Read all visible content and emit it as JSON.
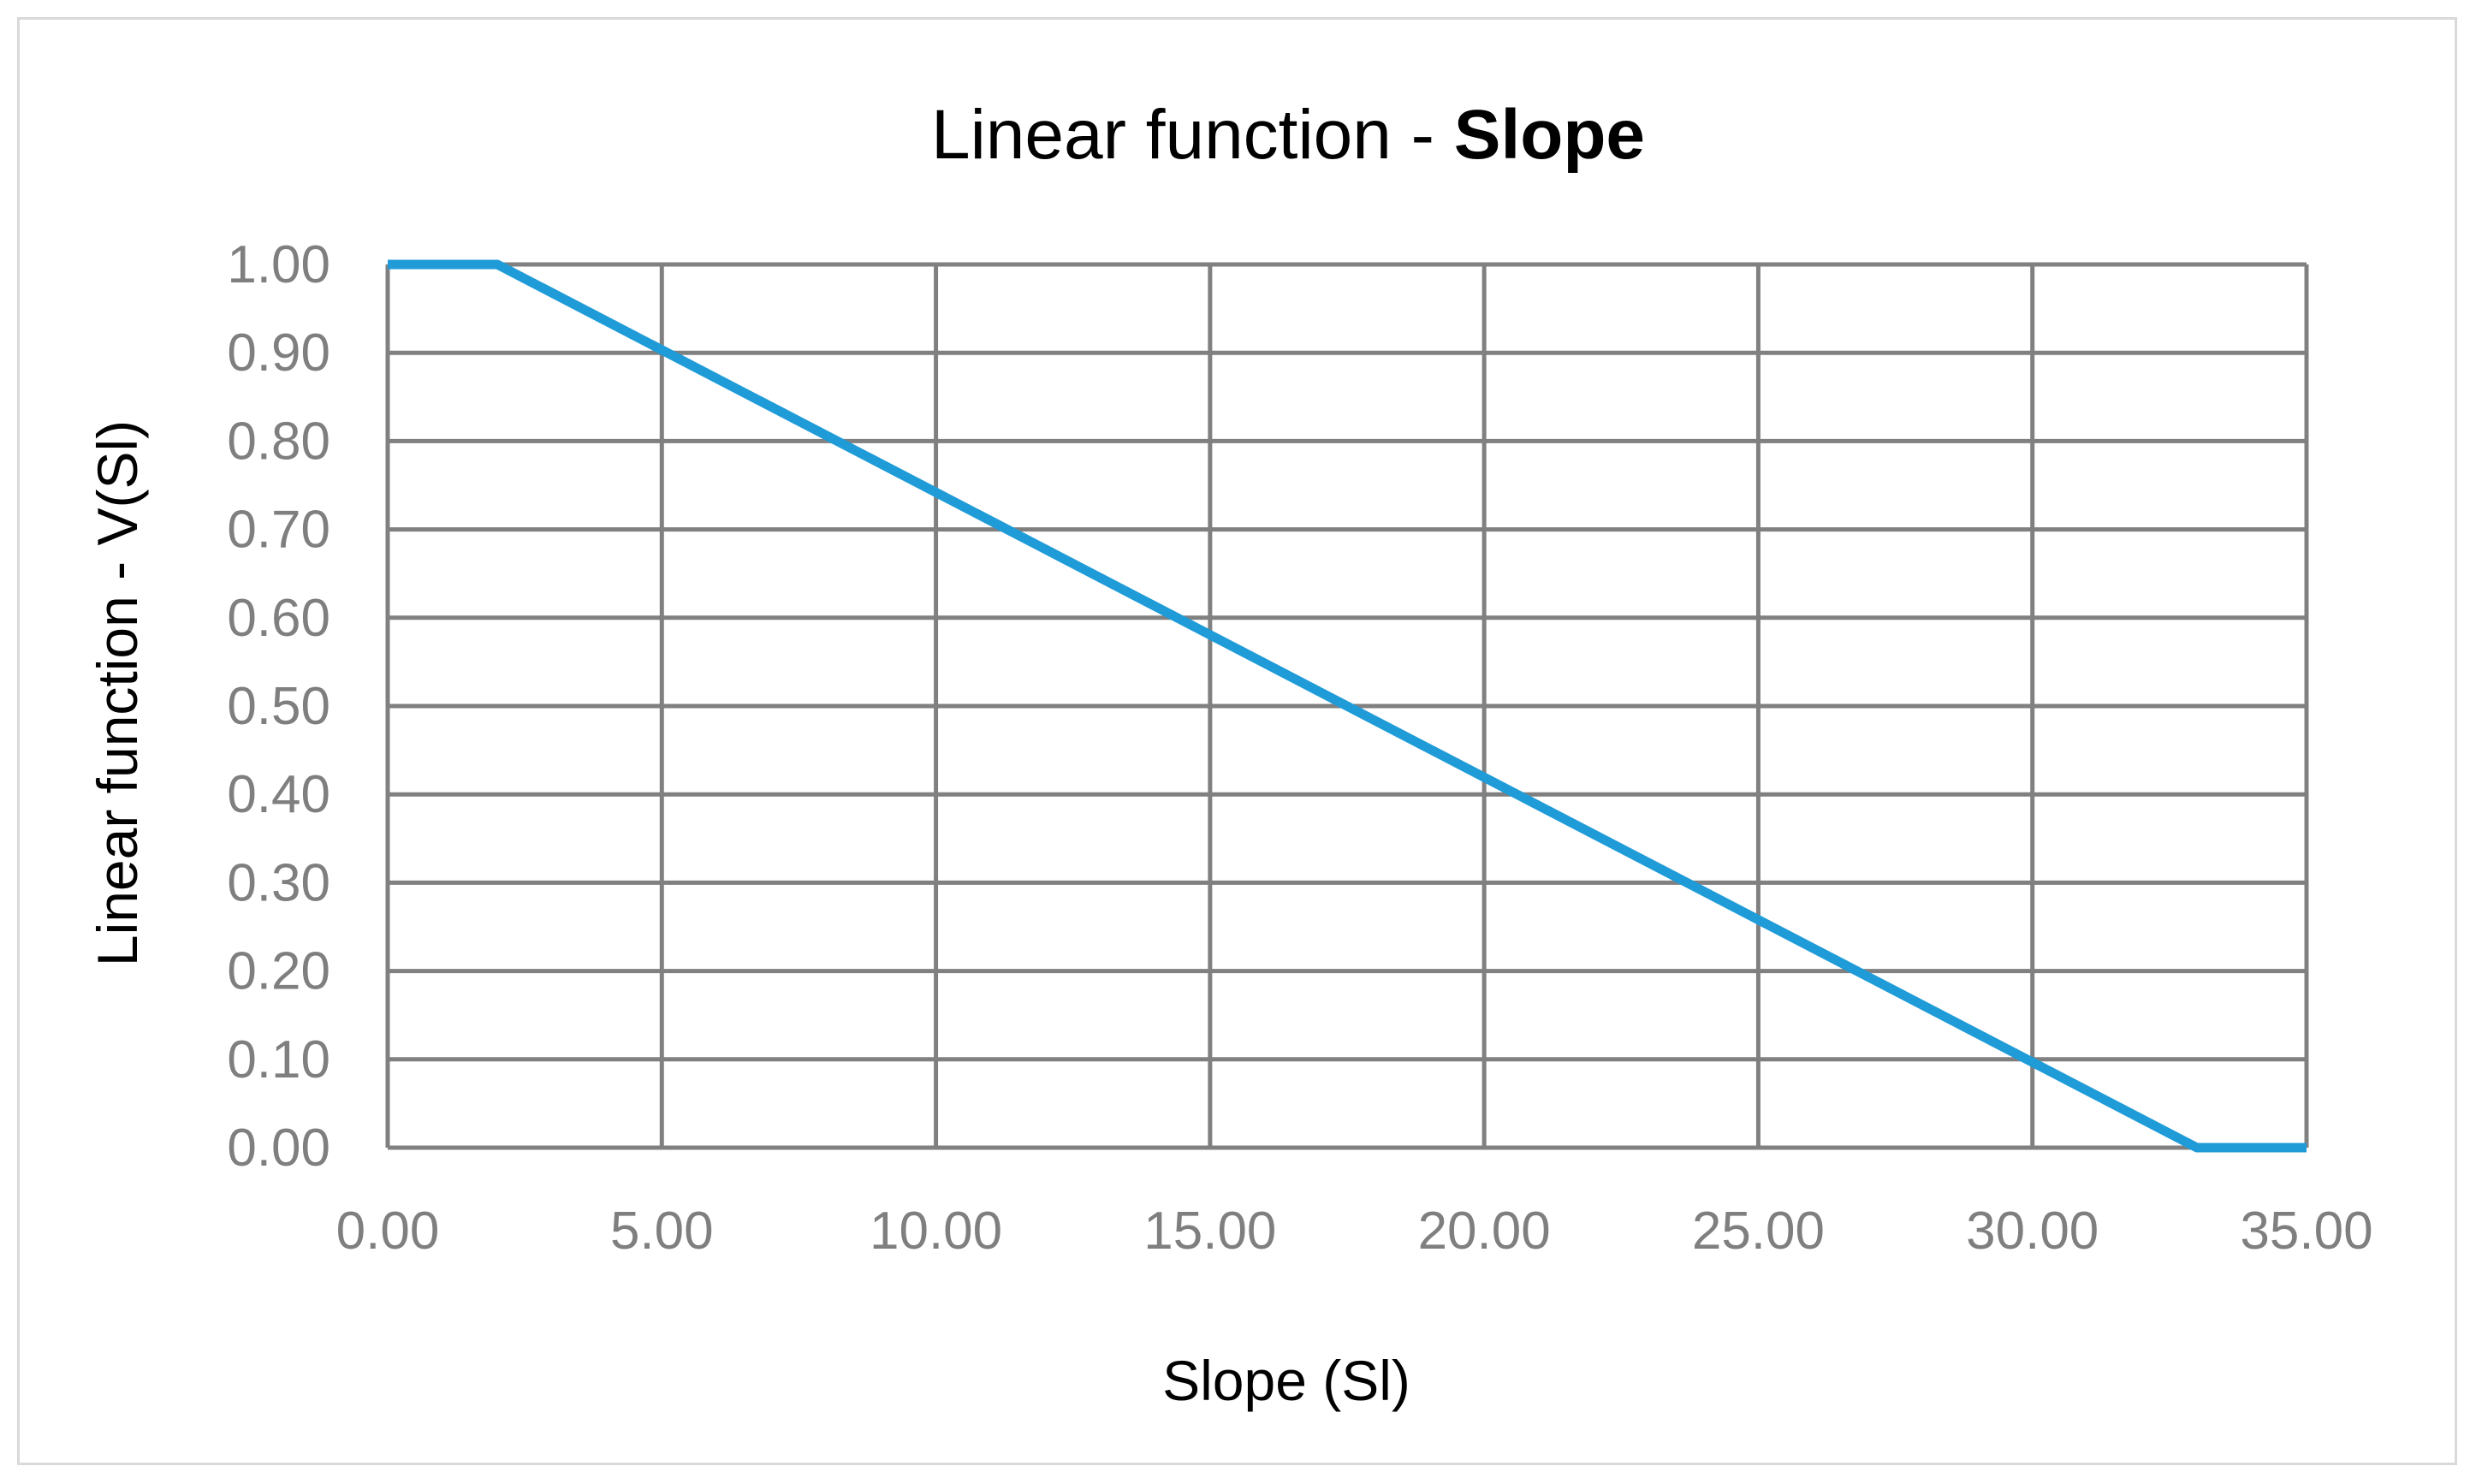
{
  "chart_data": {
    "type": "line",
    "title": "Linear function - ",
    "title_bold": "Slope",
    "xlabel": "Slope (Sl)",
    "ylabel": "Linear function - V(Sl)",
    "xlim": [
      0,
      35
    ],
    "ylim": [
      0,
      1
    ],
    "grid": true,
    "x_ticks": [
      "0.00",
      "5.00",
      "10.00",
      "15.00",
      "20.00",
      "25.00",
      "30.00",
      "35.00"
    ],
    "y_ticks": [
      "0.00",
      "0.10",
      "0.20",
      "0.30",
      "0.40",
      "0.50",
      "0.60",
      "0.70",
      "0.80",
      "0.90",
      "1.00"
    ],
    "series": [
      {
        "points": [
          {
            "x": 0,
            "y": 1.0
          },
          {
            "x": 2,
            "y": 1.0
          },
          {
            "x": 33,
            "y": 0.0
          },
          {
            "x": 35,
            "y": 0.0
          }
        ],
        "color": "#1f9bd7"
      }
    ],
    "colors": {
      "grid": "#808080",
      "tick_text": "#7f7f7f",
      "line": "#1f9bd7"
    }
  }
}
